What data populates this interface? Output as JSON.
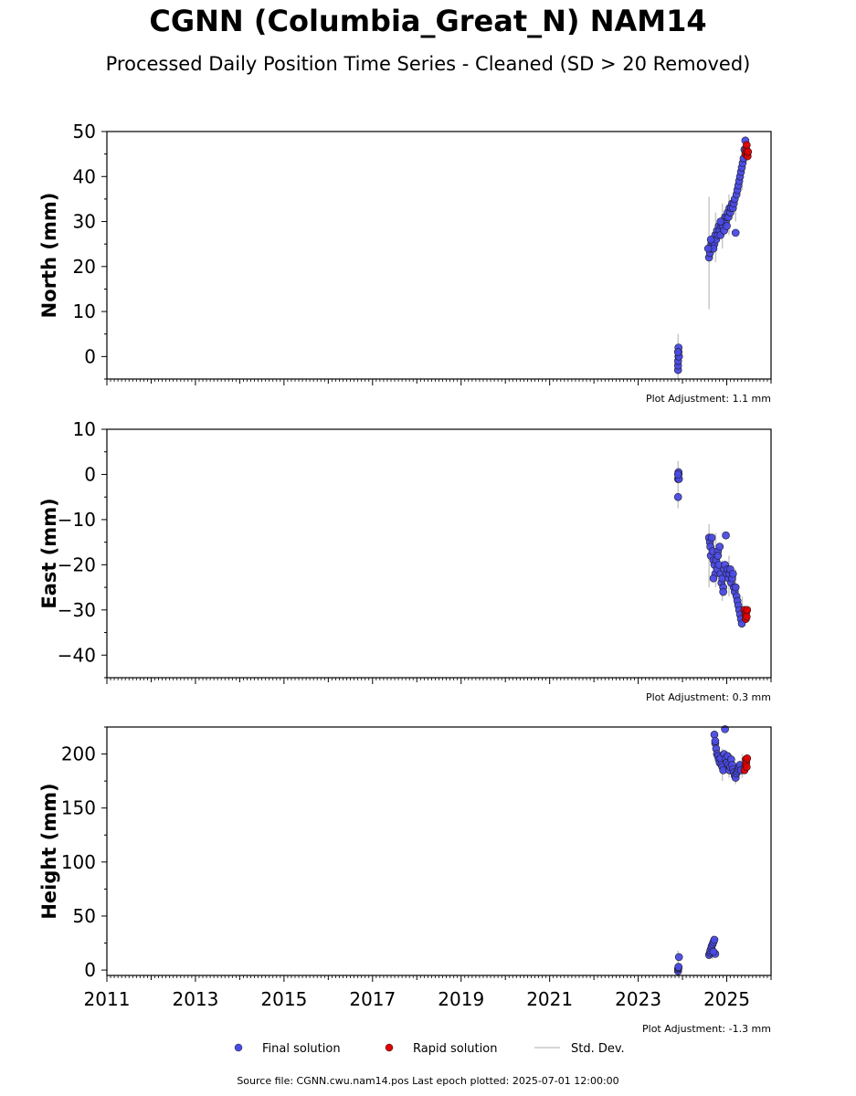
{
  "title": "CGNN (Columbia_Great_N) NAM14",
  "subtitle": "Processed Daily Position Time Series - Cleaned (SD > 20 Removed)",
  "legend": {
    "final_label": "Final solution",
    "rapid_label": "Rapid solution",
    "std_label": "Std. Dev."
  },
  "source": "Source file: CGNN.cwu.nam14.pos  Last epoch plotted: 2025-07-01 12:00:00",
  "colors": {
    "final": "#4a4ae6",
    "rapid": "#e00000",
    "std": "#c8c8c8"
  },
  "chart_data": [
    {
      "type": "scatter",
      "ylabel": "North (mm)",
      "adjustment": "Plot Adjustment: 1.1 mm",
      "xlim": [
        2011,
        2026
      ],
      "ylim": [
        -5,
        50
      ],
      "yticks": [
        0,
        10,
        20,
        30,
        40,
        50
      ],
      "yminor": 5,
      "series": [
        {
          "name": "Final solution",
          "points": [
            [
              2023.9,
              -3
            ],
            [
              2023.9,
              -2
            ],
            [
              2023.9,
              -1
            ],
            [
              2023.91,
              0
            ],
            [
              2023.91,
              1
            ],
            [
              2023.91,
              2
            ],
            [
              2023.92,
              0
            ],
            [
              2023.9,
              1
            ],
            [
              2024.6,
              22
            ],
            [
              2024.62,
              23
            ],
            [
              2024.63,
              24
            ],
            [
              2024.65,
              25
            ],
            [
              2024.66,
              24
            ],
            [
              2024.68,
              25
            ],
            [
              2024.7,
              26
            ],
            [
              2024.72,
              25
            ],
            [
              2024.74,
              27
            ],
            [
              2024.76,
              26
            ],
            [
              2024.78,
              28
            ],
            [
              2024.8,
              27
            ],
            [
              2024.82,
              29
            ],
            [
              2024.84,
              28
            ],
            [
              2024.86,
              27
            ],
            [
              2024.88,
              29
            ],
            [
              2024.9,
              30
            ],
            [
              2024.92,
              29
            ],
            [
              2024.94,
              28
            ],
            [
              2024.96,
              31
            ],
            [
              2024.98,
              30
            ],
            [
              2025.0,
              31
            ],
            [
              2025.02,
              32
            ],
            [
              2025.04,
              31
            ],
            [
              2025.06,
              33
            ],
            [
              2025.08,
              32
            ],
            [
              2025.1,
              33
            ],
            [
              2025.12,
              34
            ],
            [
              2025.14,
              33
            ],
            [
              2025.16,
              34
            ],
            [
              2025.18,
              35
            ],
            [
              2025.2,
              27.5
            ],
            [
              2025.22,
              36
            ],
            [
              2025.24,
              37
            ],
            [
              2025.26,
              38
            ],
            [
              2025.28,
              39
            ],
            [
              2025.3,
              40
            ],
            [
              2025.32,
              41
            ],
            [
              2025.34,
              42
            ],
            [
              2025.36,
              43
            ],
            [
              2025.38,
              44
            ],
            [
              2025.4,
              46
            ],
            [
              2025.42,
              48
            ],
            [
              2024.64,
              26
            ],
            [
              2024.7,
              24
            ],
            [
              2024.86,
              30
            ],
            [
              2025.0,
              29
            ],
            [
              2024.58,
              24
            ]
          ]
        },
        {
          "name": "Rapid solution",
          "points": [
            [
              2025.42,
              45
            ],
            [
              2025.44,
              46
            ],
            [
              2025.45,
              47
            ],
            [
              2025.46,
              45
            ],
            [
              2025.47,
              44.5
            ],
            [
              2025.48,
              45.5
            ]
          ]
        }
      ],
      "std": [
        [
          2023.9,
          -5,
          5
        ],
        [
          2024.6,
          10.5,
          35.5
        ],
        [
          2024.75,
          21,
          32
        ],
        [
          2024.9,
          24,
          34
        ],
        [
          2025.05,
          27,
          36
        ],
        [
          2025.2,
          30,
          38
        ],
        [
          2025.35,
          37,
          46
        ]
      ]
    },
    {
      "type": "scatter",
      "ylabel": "East (mm)",
      "adjustment": "Plot Adjustment: 0.3 mm",
      "xlim": [
        2011,
        2026
      ],
      "ylim": [
        -45,
        10
      ],
      "yticks": [
        -40,
        -30,
        -20,
        -10,
        0,
        10
      ],
      "yminor": 5,
      "series": [
        {
          "name": "Final solution",
          "points": [
            [
              2023.9,
              -5
            ],
            [
              2023.9,
              -1
            ],
            [
              2023.91,
              0
            ],
            [
              2023.91,
              0.5
            ],
            [
              2023.92,
              -1
            ],
            [
              2023.9,
              0
            ],
            [
              2024.6,
              -14
            ],
            [
              2024.62,
              -15
            ],
            [
              2024.63,
              -16
            ],
            [
              2024.64,
              -18
            ],
            [
              2024.66,
              -14
            ],
            [
              2024.68,
              -17
            ],
            [
              2024.7,
              -19
            ],
            [
              2024.72,
              -20
            ],
            [
              2024.74,
              -22
            ],
            [
              2024.76,
              -19
            ],
            [
              2024.78,
              -21
            ],
            [
              2024.8,
              -17
            ],
            [
              2024.82,
              -20
            ],
            [
              2024.84,
              -16
            ],
            [
              2024.86,
              -22
            ],
            [
              2024.88,
              -24
            ],
            [
              2024.9,
              -23
            ],
            [
              2024.92,
              -25
            ],
            [
              2024.94,
              -21
            ],
            [
              2024.96,
              -20
            ],
            [
              2024.98,
              -13.5
            ],
            [
              2025.0,
              -22
            ],
            [
              2025.02,
              -21
            ],
            [
              2025.04,
              -23
            ],
            [
              2025.06,
              -22
            ],
            [
              2025.08,
              -21
            ],
            [
              2025.1,
              -24
            ],
            [
              2025.12,
              -23
            ],
            [
              2025.14,
              -22
            ],
            [
              2025.16,
              -25
            ],
            [
              2025.18,
              -26
            ],
            [
              2025.2,
              -25
            ],
            [
              2025.22,
              -27
            ],
            [
              2025.24,
              -28
            ],
            [
              2025.26,
              -29
            ],
            [
              2025.28,
              -30
            ],
            [
              2025.3,
              -31
            ],
            [
              2025.32,
              -32
            ],
            [
              2025.34,
              -33
            ],
            [
              2024.7,
              -23
            ],
            [
              2024.8,
              -18
            ],
            [
              2024.92,
              -26
            ]
          ]
        },
        {
          "name": "Rapid solution",
          "points": [
            [
              2025.4,
              -30
            ],
            [
              2025.42,
              -31
            ],
            [
              2025.43,
              -32
            ],
            [
              2025.44,
              -30.5
            ],
            [
              2025.45,
              -31.5
            ],
            [
              2025.46,
              -30
            ]
          ]
        }
      ],
      "std": [
        [
          2023.9,
          -7.5,
          3
        ],
        [
          2024.6,
          -25,
          -11
        ],
        [
          2024.75,
          -25,
          -13
        ],
        [
          2024.9,
          -28,
          -19
        ],
        [
          2025.05,
          -27,
          -18
        ],
        [
          2025.2,
          -29,
          -21
        ],
        [
          2025.35,
          -34,
          -27
        ]
      ]
    },
    {
      "type": "scatter",
      "ylabel": "Height (mm)",
      "adjustment": "Plot Adjustment: -1.3 mm",
      "xlim": [
        2011,
        2026
      ],
      "ylim": [
        -5,
        225
      ],
      "xticks": [
        2011,
        2013,
        2015,
        2017,
        2019,
        2021,
        2023,
        2025
      ],
      "yticks": [
        0,
        50,
        100,
        150,
        200
      ],
      "yminor": 25,
      "series": [
        {
          "name": "Final solution",
          "points": [
            [
              2023.9,
              -1
            ],
            [
              2023.9,
              1
            ],
            [
              2023.91,
              2
            ],
            [
              2023.91,
              3
            ],
            [
              2023.92,
              12
            ],
            [
              2024.6,
              14
            ],
            [
              2024.62,
              16
            ],
            [
              2024.63,
              18
            ],
            [
              2024.65,
              20
            ],
            [
              2024.66,
              22
            ],
            [
              2024.68,
              24
            ],
            [
              2024.7,
              26
            ],
            [
              2024.72,
              28
            ],
            [
              2024.74,
              15
            ],
            [
              2024.7,
              17
            ],
            [
              2024.72,
              218
            ],
            [
              2024.74,
              210
            ],
            [
              2024.76,
              205
            ],
            [
              2024.78,
              200
            ],
            [
              2024.8,
              198
            ],
            [
              2024.82,
              195
            ],
            [
              2024.84,
              192
            ],
            [
              2024.86,
              196
            ],
            [
              2024.88,
              190
            ],
            [
              2024.9,
              188
            ],
            [
              2024.92,
              185
            ],
            [
              2024.94,
              200
            ],
            [
              2024.96,
              223
            ],
            [
              2024.98,
              196
            ],
            [
              2025.0,
              192
            ],
            [
              2025.02,
              198
            ],
            [
              2025.04,
              190
            ],
            [
              2025.06,
              185
            ],
            [
              2025.08,
              188
            ],
            [
              2025.1,
              195
            ],
            [
              2025.12,
              190
            ],
            [
              2025.14,
              186
            ],
            [
              2025.16,
              183
            ],
            [
              2025.18,
              180
            ],
            [
              2025.2,
              178
            ],
            [
              2025.22,
              182
            ],
            [
              2025.24,
              184
            ],
            [
              2025.26,
              186
            ],
            [
              2025.28,
              188
            ],
            [
              2025.3,
              190
            ],
            [
              2025.32,
              185
            ],
            [
              2024.74,
              212
            ]
          ]
        },
        {
          "name": "Rapid solution",
          "points": [
            [
              2025.4,
              185
            ],
            [
              2025.42,
              190
            ],
            [
              2025.43,
              195
            ],
            [
              2025.44,
              192
            ],
            [
              2025.45,
              188
            ],
            [
              2025.46,
              196
            ]
          ]
        }
      ],
      "std": [
        [
          2023.9,
          -3,
          18
        ],
        [
          2024.68,
          10,
          32
        ],
        [
          2024.75,
          195,
          220
        ],
        [
          2024.9,
          175,
          205
        ],
        [
          2025.05,
          178,
          202
        ],
        [
          2025.2,
          172,
          192
        ],
        [
          2025.35,
          178,
          200
        ]
      ]
    }
  ]
}
